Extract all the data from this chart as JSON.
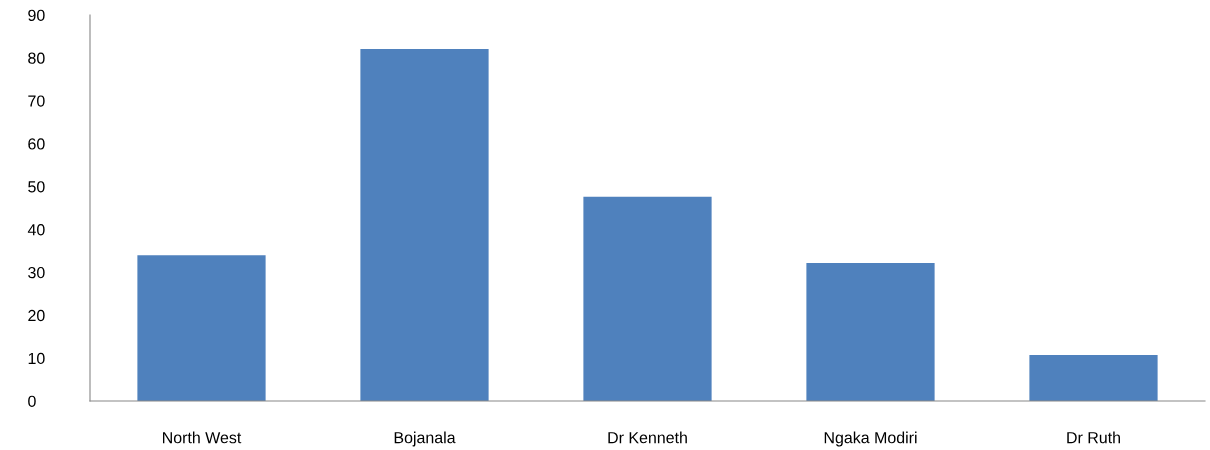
{
  "chart_data": {
    "type": "bar",
    "categories": [
      "North West",
      "Bojanala",
      "Dr Kenneth",
      "Ngaka Modiri",
      "Dr Ruth"
    ],
    "values": [
      34.0,
      82.1,
      47.6,
      32.2,
      10.7
    ],
    "color": "#4f81bd",
    "ylim": [
      0,
      90
    ],
    "yticks": [
      0,
      10,
      20,
      30,
      40,
      50,
      60,
      70,
      80,
      90
    ],
    "grid": false
  }
}
